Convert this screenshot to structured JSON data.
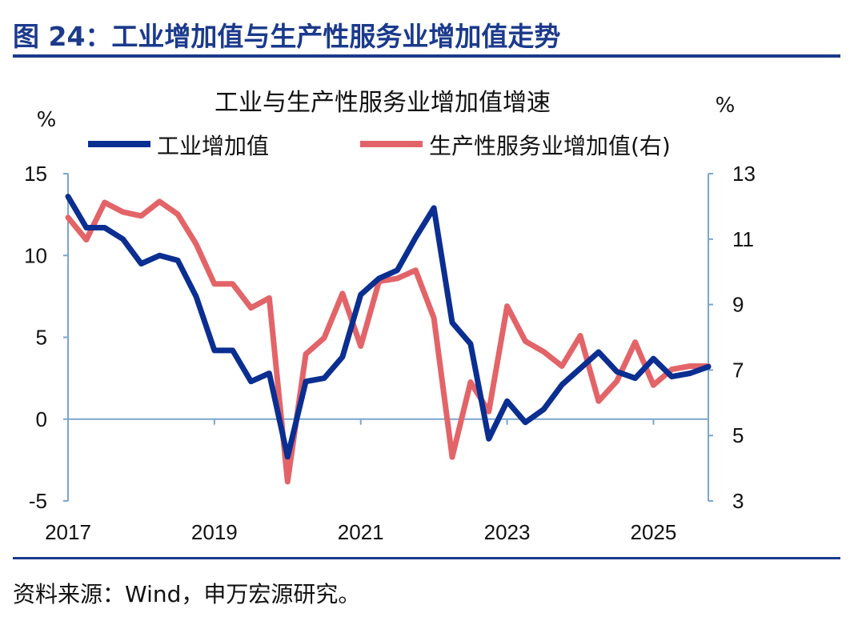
{
  "figure_title": "图 24：工业增加值与生产性服务业增加值走势",
  "source": "资料来源：Wind，申万宏源研究。",
  "colors": {
    "industry": "#0B2E91",
    "services": "#E36468",
    "axis": "#7AA6CF",
    "title": "#1B3A8C"
  },
  "chart_data": {
    "type": "line",
    "title": "工业与生产性服务业增加值增速",
    "left_unit": "%",
    "right_unit": "%",
    "x_ticks": [
      "2017",
      "2019",
      "2021",
      "2023",
      "2025"
    ],
    "x_range": [
      2017,
      2025.75
    ],
    "y_left": {
      "range": [
        -5,
        15
      ],
      "ticks": [
        "15",
        "10",
        "5",
        "0",
        "-5"
      ]
    },
    "y_right": {
      "range": [
        3,
        13
      ],
      "ticks": [
        "13",
        "11",
        "9",
        "7",
        "5",
        "3"
      ]
    },
    "legend_position": "top",
    "grid": false,
    "x": [
      2017,
      2017.25,
      2017.5,
      2017.75,
      2018,
      2018.25,
      2018.5,
      2018.75,
      2019,
      2019.25,
      2019.5,
      2019.75,
      2020,
      2020.25,
      2020.5,
      2020.75,
      2021,
      2021.25,
      2021.5,
      2021.75,
      2022,
      2022.25,
      2022.5,
      2022.75,
      2023,
      2023.25,
      2023.5,
      2023.75,
      2024,
      2024.25,
      2024.5,
      2024.75,
      2025,
      2025.25,
      2025.5,
      2025.75
    ],
    "series": [
      {
        "name": "工业增加值",
        "axis": "left",
        "values": [
          13.6,
          11.7,
          11.7,
          11.0,
          9.5,
          10.0,
          9.7,
          7.5,
          4.2,
          4.2,
          2.3,
          2.8,
          -2.3,
          2.3,
          2.5,
          3.8,
          7.6,
          8.6,
          9.1,
          11.1,
          12.9,
          5.9,
          4.6,
          -1.2,
          1.1,
          -0.2,
          0.6,
          2.1,
          3.1,
          4.1,
          2.9,
          2.5,
          3.7,
          2.6,
          2.8,
          3.2
        ]
      },
      {
        "name": "生产性服务业增加值(右)",
        "axis": "right",
        "values": [
          11.66,
          10.98,
          12.12,
          11.83,
          11.71,
          12.15,
          11.76,
          10.85,
          9.63,
          9.63,
          8.9,
          9.2,
          3.59,
          7.49,
          7.98,
          9.34,
          7.73,
          9.71,
          9.8,
          10.05,
          8.59,
          4.34,
          6.63,
          5.73,
          8.95,
          7.88,
          7.56,
          7.12,
          8.05,
          6.05,
          6.66,
          7.85,
          6.54,
          7.02,
          7.12,
          7.12
        ]
      }
    ]
  }
}
